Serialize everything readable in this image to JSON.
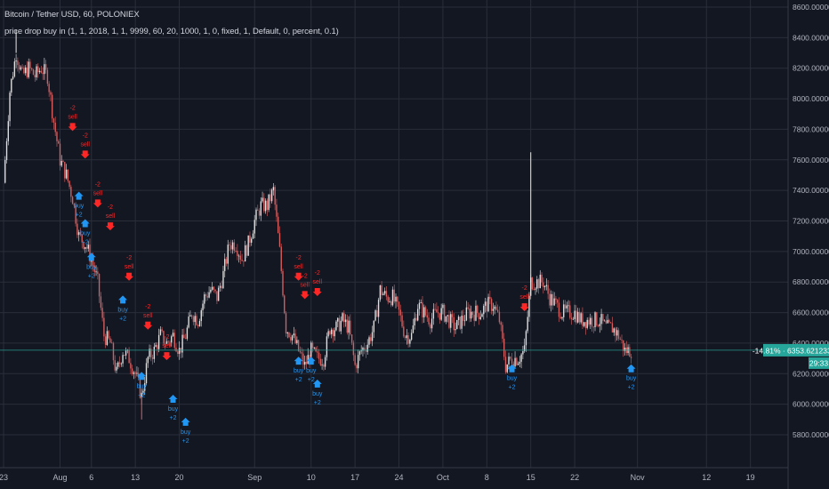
{
  "header": {
    "symbol": "Bitcoin / Tether USD, 60, POLONIEX",
    "indicator": "price drop buy in (1, 1, 2018, 1, 1, 9999, 60, 20, 1000, 1, 0, fixed, 1, Default, 0, percent, 0.1)"
  },
  "price_label": {
    "value": "6353.62123366",
    "change": "-14.81%",
    "countdown": "29:33"
  },
  "colors": {
    "background": "#131722",
    "grid": "#2a2e39",
    "up_candle": "#e8e8e8",
    "down_candle": "#e06060",
    "buy_marker": "#2196f3",
    "sell_marker": "#ff2626",
    "price_line": "#26a69a"
  },
  "chart_data": {
    "type": "candlestick",
    "y_axis": {
      "position": "right",
      "min": 5600,
      "max": 8600,
      "ticks": [
        "8600.00000000",
        "8400.00000000",
        "8200.00000000",
        "8000.00000000",
        "7800.00000000",
        "7600.00000000",
        "7400.00000000",
        "7200.00000000",
        "7000.00000000",
        "6800.00000000",
        "6600.00000000",
        "6400.00000000",
        "6200.00000000",
        "6000.00000000",
        "5800.00000000"
      ],
      "tick_values": [
        8600,
        8400,
        8200,
        8000,
        7800,
        7600,
        7400,
        7200,
        7000,
        6800,
        6600,
        6400,
        6200,
        6000,
        5800
      ]
    },
    "x_axis": {
      "start": "2018-07-23",
      "end": "2018-11-25",
      "ticks": [
        {
          "label": "23",
          "date": "2018-07-23"
        },
        {
          "label": "Aug",
          "date": "2018-08-01"
        },
        {
          "label": "6",
          "date": "2018-08-06"
        },
        {
          "label": "13",
          "date": "2018-08-13"
        },
        {
          "label": "20",
          "date": "2018-08-20"
        },
        {
          "label": "Sep",
          "date": "2018-09-01"
        },
        {
          "label": "10",
          "date": "2018-09-10"
        },
        {
          "label": "17",
          "date": "2018-09-17"
        },
        {
          "label": "24",
          "date": "2018-09-24"
        },
        {
          "label": "Oct",
          "date": "2018-10-01"
        },
        {
          "label": "8",
          "date": "2018-10-08"
        },
        {
          "label": "15",
          "date": "2018-10-15"
        },
        {
          "label": "22",
          "date": "2018-10-22"
        },
        {
          "label": "Nov",
          "date": "2018-11-01"
        },
        {
          "label": "12",
          "date": "2018-11-12"
        },
        {
          "label": "19",
          "date": "2018-11-19"
        }
      ]
    },
    "price_path": [
      {
        "date": "2018-07-23",
        "price": 7450
      },
      {
        "date": "2018-07-24",
        "price": 8050
      },
      {
        "date": "2018-07-25",
        "price": 8300
      },
      {
        "date": "2018-07-26",
        "price": 8150
      },
      {
        "date": "2018-07-27",
        "price": 8200
      },
      {
        "date": "2018-07-28",
        "price": 8150
      },
      {
        "date": "2018-07-29",
        "price": 8200
      },
      {
        "date": "2018-07-30",
        "price": 8150
      },
      {
        "date": "2018-07-31",
        "price": 7850
      },
      {
        "date": "2018-08-01",
        "price": 7600
      },
      {
        "date": "2018-08-02",
        "price": 7500
      },
      {
        "date": "2018-08-03",
        "price": 7350
      },
      {
        "date": "2018-08-04",
        "price": 7100
      },
      {
        "date": "2018-08-05",
        "price": 7050
      },
      {
        "date": "2018-08-06",
        "price": 6950
      },
      {
        "date": "2018-08-07",
        "price": 6800
      },
      {
        "date": "2018-08-08",
        "price": 6450
      },
      {
        "date": "2018-08-09",
        "price": 6400
      },
      {
        "date": "2018-08-10",
        "price": 6200
      },
      {
        "date": "2018-08-11",
        "price": 6350
      },
      {
        "date": "2018-08-12",
        "price": 6300
      },
      {
        "date": "2018-08-13",
        "price": 6200
      },
      {
        "date": "2018-08-14",
        "price": 6050
      },
      {
        "date": "2018-08-15",
        "price": 6300
      },
      {
        "date": "2018-08-16",
        "price": 6350
      },
      {
        "date": "2018-08-17",
        "price": 6450
      },
      {
        "date": "2018-08-18",
        "price": 6400
      },
      {
        "date": "2018-08-19",
        "price": 6450
      },
      {
        "date": "2018-08-20",
        "price": 6350
      },
      {
        "date": "2018-08-21",
        "price": 6450
      },
      {
        "date": "2018-08-22",
        "price": 6600
      },
      {
        "date": "2018-08-23",
        "price": 6550
      },
      {
        "date": "2018-08-24",
        "price": 6700
      },
      {
        "date": "2018-08-25",
        "price": 6750
      },
      {
        "date": "2018-08-26",
        "price": 6700
      },
      {
        "date": "2018-08-27",
        "price": 6850
      },
      {
        "date": "2018-08-28",
        "price": 7050
      },
      {
        "date": "2018-08-29",
        "price": 7050
      },
      {
        "date": "2018-08-30",
        "price": 6950
      },
      {
        "date": "2018-08-31",
        "price": 7050
      },
      {
        "date": "2018-09-01",
        "price": 7200
      },
      {
        "date": "2018-09-02",
        "price": 7300
      },
      {
        "date": "2018-09-03",
        "price": 7300
      },
      {
        "date": "2018-09-04",
        "price": 7400
      },
      {
        "date": "2018-09-05",
        "price": 7000
      },
      {
        "date": "2018-09-06",
        "price": 6500
      },
      {
        "date": "2018-09-07",
        "price": 6450
      },
      {
        "date": "2018-09-08",
        "price": 6350
      },
      {
        "date": "2018-09-09",
        "price": 6250
      },
      {
        "date": "2018-09-10",
        "price": 6350
      },
      {
        "date": "2018-09-11",
        "price": 6300
      },
      {
        "date": "2018-09-12",
        "price": 6300
      },
      {
        "date": "2018-09-13",
        "price": 6500
      },
      {
        "date": "2018-09-14",
        "price": 6500
      },
      {
        "date": "2018-09-15",
        "price": 6550
      },
      {
        "date": "2018-09-16",
        "price": 6500
      },
      {
        "date": "2018-09-17",
        "price": 6250
      },
      {
        "date": "2018-09-18",
        "price": 6350
      },
      {
        "date": "2018-09-19",
        "price": 6400
      },
      {
        "date": "2018-09-20",
        "price": 6500
      },
      {
        "date": "2018-09-21",
        "price": 6750
      },
      {
        "date": "2018-09-22",
        "price": 6700
      },
      {
        "date": "2018-09-23",
        "price": 6700
      },
      {
        "date": "2018-09-24",
        "price": 6600
      },
      {
        "date": "2018-09-25",
        "price": 6450
      },
      {
        "date": "2018-09-26",
        "price": 6450
      },
      {
        "date": "2018-09-27",
        "price": 6650
      },
      {
        "date": "2018-09-28",
        "price": 6600
      },
      {
        "date": "2018-09-29",
        "price": 6550
      },
      {
        "date": "2018-09-30",
        "price": 6600
      },
      {
        "date": "2018-10-01",
        "price": 6600
      },
      {
        "date": "2018-10-02",
        "price": 6550
      },
      {
        "date": "2018-10-03",
        "price": 6500
      },
      {
        "date": "2018-10-04",
        "price": 6550
      },
      {
        "date": "2018-10-05",
        "price": 6600
      },
      {
        "date": "2018-10-06",
        "price": 6600
      },
      {
        "date": "2018-10-07",
        "price": 6600
      },
      {
        "date": "2018-10-08",
        "price": 6650
      },
      {
        "date": "2018-10-09",
        "price": 6650
      },
      {
        "date": "2018-10-10",
        "price": 6550
      },
      {
        "date": "2018-10-11",
        "price": 6250
      },
      {
        "date": "2018-10-12",
        "price": 6300
      },
      {
        "date": "2018-10-13",
        "price": 6300
      },
      {
        "date": "2018-10-14",
        "price": 6350
      },
      {
        "date": "2018-10-15",
        "price": 6800
      },
      {
        "date": "2018-10-16",
        "price": 6800
      },
      {
        "date": "2018-10-17",
        "price": 6800
      },
      {
        "date": "2018-10-18",
        "price": 6700
      },
      {
        "date": "2018-10-19",
        "price": 6650
      },
      {
        "date": "2018-10-20",
        "price": 6600
      },
      {
        "date": "2018-10-21",
        "price": 6600
      },
      {
        "date": "2018-10-22",
        "price": 6600
      },
      {
        "date": "2018-10-23",
        "price": 6550
      },
      {
        "date": "2018-10-24",
        "price": 6550
      },
      {
        "date": "2018-10-25",
        "price": 6550
      },
      {
        "date": "2018-10-26",
        "price": 6550
      },
      {
        "date": "2018-10-27",
        "price": 6500
      },
      {
        "date": "2018-10-28",
        "price": 6500
      },
      {
        "date": "2018-10-29",
        "price": 6450
      },
      {
        "date": "2018-10-30",
        "price": 6350
      },
      {
        "date": "2018-10-31",
        "price": 6353.62
      }
    ],
    "spikes": [
      {
        "date": "2018-10-15",
        "high": 7650
      },
      {
        "date": "2018-07-25",
        "high": 8450
      },
      {
        "date": "2018-08-14",
        "low": 5900
      },
      {
        "date": "2018-09-04",
        "high": 7420
      }
    ],
    "signals": [
      {
        "type": "sell",
        "date": "2018-08-03",
        "price": 7800,
        "labels": [
          "-2",
          "sell"
        ]
      },
      {
        "type": "sell",
        "date": "2018-08-05",
        "price": 7620,
        "labels": [
          "-2",
          "sell"
        ]
      },
      {
        "type": "sell",
        "date": "2018-08-07",
        "price": 7300,
        "labels": [
          "-2",
          "sell"
        ]
      },
      {
        "type": "sell",
        "date": "2018-08-09",
        "price": 7150,
        "labels": [
          "-2",
          "sell"
        ]
      },
      {
        "type": "buy",
        "date": "2018-08-04",
        "price": 7380,
        "labels": [
          "buy",
          "+2"
        ]
      },
      {
        "type": "buy",
        "date": "2018-08-05",
        "price": 7200,
        "labels": [
          "buy",
          "+2"
        ]
      },
      {
        "type": "buy",
        "date": "2018-08-06",
        "price": 6980,
        "labels": [
          "buy",
          "+2"
        ]
      },
      {
        "type": "sell",
        "date": "2018-08-12",
        "price": 6820,
        "labels": [
          "-2",
          "sell"
        ]
      },
      {
        "type": "buy",
        "date": "2018-08-11",
        "price": 6700,
        "labels": [
          "buy",
          "+2"
        ]
      },
      {
        "type": "sell",
        "date": "2018-08-15",
        "price": 6500,
        "labels": [
          "-2",
          "sell"
        ]
      },
      {
        "type": "buy",
        "date": "2018-08-14",
        "price": 6200,
        "labels": [
          "buy",
          "+2"
        ]
      },
      {
        "type": "sell",
        "date": "2018-08-18",
        "price": 6300,
        "labels": [
          "-2",
          "sell"
        ]
      },
      {
        "type": "buy",
        "date": "2018-08-19",
        "price": 6050,
        "labels": [
          "buy",
          "+2"
        ]
      },
      {
        "type": "buy",
        "date": "2018-08-21",
        "price": 5900,
        "labels": [
          "buy",
          "+2"
        ]
      },
      {
        "type": "sell",
        "date": "2018-09-08",
        "price": 6820,
        "labels": [
          "-2",
          "sell"
        ]
      },
      {
        "type": "sell",
        "date": "2018-09-09",
        "price": 6700,
        "labels": [
          "-2",
          "sell"
        ]
      },
      {
        "type": "sell",
        "date": "2018-09-11",
        "price": 6720,
        "labels": [
          "-2",
          "sell"
        ]
      },
      {
        "type": "buy",
        "date": "2018-09-08",
        "price": 6300,
        "labels": [
          "buy",
          "+2"
        ]
      },
      {
        "type": "buy",
        "date": "2018-09-10",
        "price": 6300,
        "labels": [
          "buy",
          "+2"
        ]
      },
      {
        "type": "buy",
        "date": "2018-09-11",
        "price": 6150,
        "labels": [
          "buy",
          "+2"
        ]
      },
      {
        "type": "sell",
        "date": "2018-10-14",
        "price": 6620,
        "labels": [
          "-2",
          "sell"
        ]
      },
      {
        "type": "buy",
        "date": "2018-10-12",
        "price": 6250,
        "labels": [
          "buy",
          "+2"
        ]
      },
      {
        "type": "buy",
        "date": "2018-10-31",
        "price": 6250,
        "labels": [
          "buy",
          "+2"
        ]
      }
    ],
    "current_price": 6353.62,
    "grid": true
  }
}
